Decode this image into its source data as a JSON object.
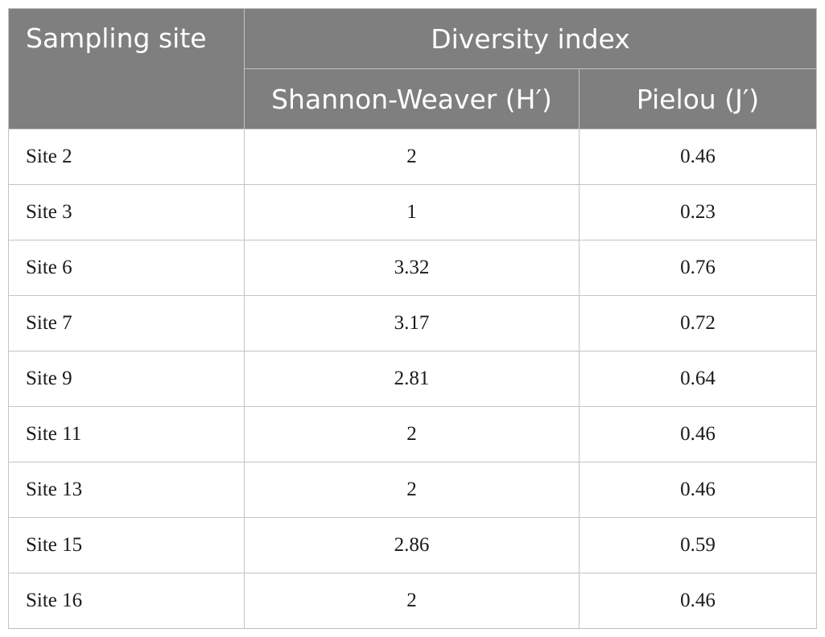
{
  "table": {
    "headers": {
      "sampling_site": "Sampling site",
      "diversity_index": "Diversity index",
      "shannon_weaver": "Shannon-Weaver (H′)",
      "pielou": "Pielou (J′)"
    },
    "rows": [
      {
        "site": "Site 2",
        "shannon": "2",
        "pielou": "0.46"
      },
      {
        "site": "Site 3",
        "shannon": "1",
        "pielou": "0.23"
      },
      {
        "site": "Site 6",
        "shannon": "3.32",
        "pielou": "0.76"
      },
      {
        "site": "Site 7",
        "shannon": "3.17",
        "pielou": "0.72"
      },
      {
        "site": "Site 9",
        "shannon": "2.81",
        "pielou": "0.64"
      },
      {
        "site": "Site 11",
        "shannon": "2",
        "pielou": "0.46"
      },
      {
        "site": "Site 13",
        "shannon": "2",
        "pielou": "0.46"
      },
      {
        "site": "Site 15",
        "shannon": "2.86",
        "pielou": "0.59"
      },
      {
        "site": "Site 16",
        "shannon": "2",
        "pielou": "0.46"
      }
    ]
  },
  "colors": {
    "header_background": "#7f7f7f",
    "header_text": "#ffffff",
    "grid_line": "#c4c4c4"
  }
}
